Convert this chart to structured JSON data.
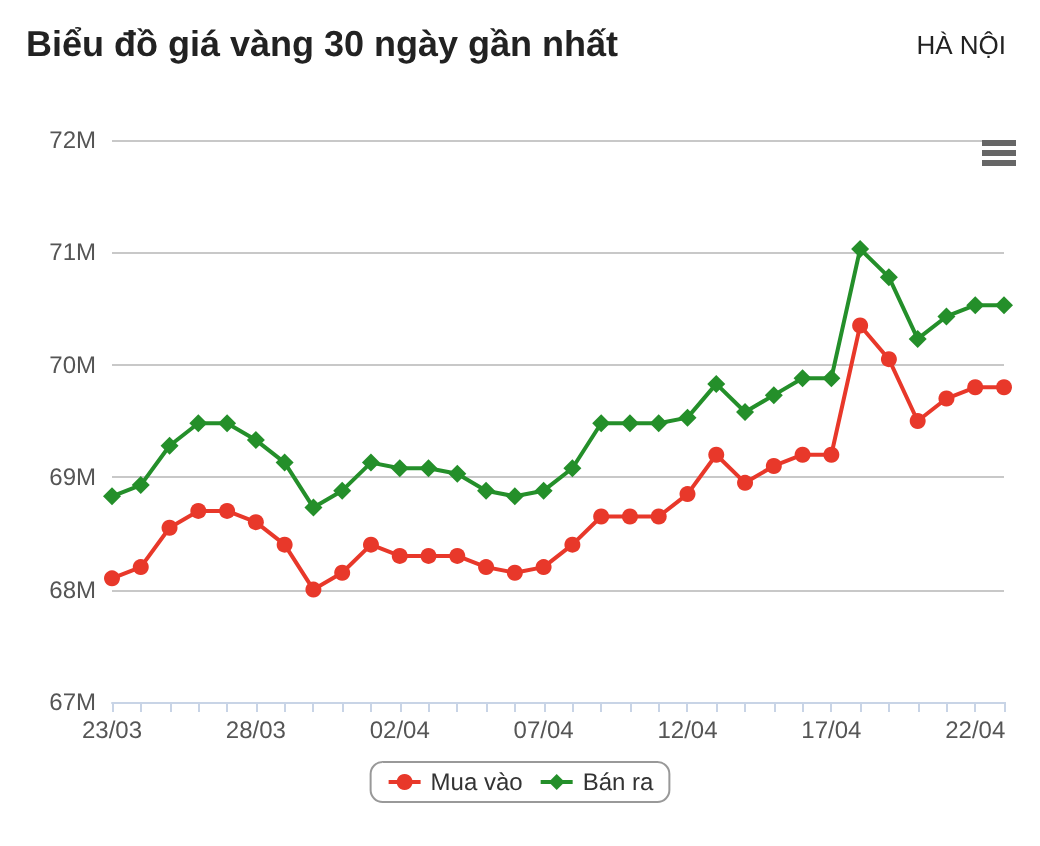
{
  "chart_data": {
    "type": "line",
    "title": "Biểu đồ giá vàng 30 ngày gần nhất",
    "subtitle": "HÀ NỘI",
    "categories": [
      "23/03",
      null,
      null,
      null,
      null,
      "28/03",
      null,
      null,
      null,
      null,
      "02/04",
      null,
      null,
      null,
      null,
      "07/04",
      null,
      null,
      null,
      null,
      "12/04",
      null,
      null,
      null,
      null,
      "17/04",
      null,
      null,
      null,
      null,
      "22/04",
      null
    ],
    "series": [
      {
        "name": "Mua vào",
        "color": "#e8382a",
        "marker": "circle",
        "values": [
          68.1,
          68.2,
          68.55,
          68.7,
          68.7,
          68.6,
          68.4,
          68.0,
          68.15,
          68.4,
          68.3,
          68.3,
          68.3,
          68.2,
          68.15,
          68.2,
          68.4,
          68.65,
          68.65,
          68.65,
          68.85,
          69.2,
          68.95,
          69.1,
          69.2,
          69.2,
          70.35,
          70.05,
          69.5,
          69.7,
          69.8,
          69.8
        ]
      },
      {
        "name": "Bán ra",
        "color": "#248f2a",
        "marker": "diamond",
        "values": [
          68.83,
          68.93,
          69.28,
          69.48,
          69.48,
          69.33,
          69.13,
          68.73,
          68.88,
          69.13,
          69.08,
          69.08,
          69.03,
          68.88,
          68.83,
          68.88,
          69.08,
          69.48,
          69.48,
          69.48,
          69.53,
          69.83,
          69.58,
          69.73,
          69.88,
          69.88,
          71.03,
          70.78,
          70.23,
          70.43,
          70.53,
          70.53
        ]
      }
    ],
    "ylim": [
      67,
      72
    ],
    "yticks": [
      {
        "value": 67,
        "label": "67M"
      },
      {
        "value": 68,
        "label": "68M"
      },
      {
        "value": 69,
        "label": "69M"
      },
      {
        "value": 70,
        "label": "70M"
      },
      {
        "value": 71,
        "label": "71M"
      },
      {
        "value": 72,
        "label": "72M"
      }
    ],
    "grid": "y",
    "legend": "bottom"
  }
}
